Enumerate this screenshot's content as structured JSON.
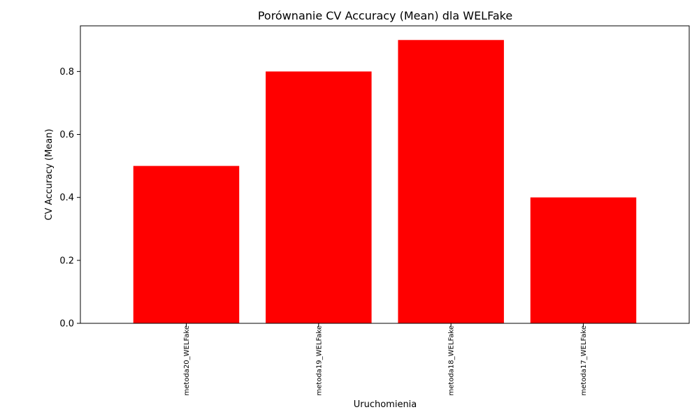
{
  "chart_data": {
    "type": "bar",
    "title": "Porównanie CV Accuracy (Mean) dla WELFake",
    "xlabel": "Uruchomienia",
    "ylabel": "CV Accuracy (Mean)",
    "categories": [
      "metoda20_WELFake",
      "metoda19_WELFake",
      "metoda18_WELFake",
      "metoda17_WELFake"
    ],
    "values": [
      0.5,
      0.8,
      0.9,
      0.4
    ],
    "yticks": [
      "0.0",
      "0.2",
      "0.4",
      "0.6",
      "0.8"
    ],
    "ylim": [
      0,
      0.945
    ],
    "bar_color": "#ff0000",
    "grid": false,
    "legend": "none"
  }
}
